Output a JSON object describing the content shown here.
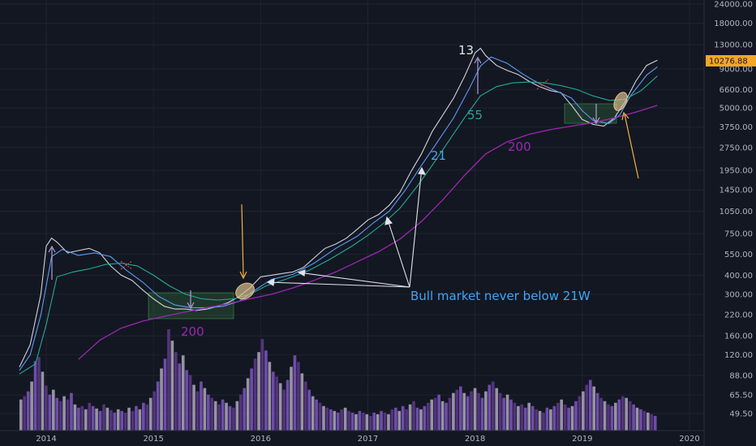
{
  "chart_data": {
    "type": "line",
    "y_scale": "log",
    "ylim": [
      45,
      27000
    ],
    "x_ticks": [
      "2014",
      "2015",
      "2016",
      "2017",
      "2018",
      "2019",
      "2020"
    ],
    "y_ticks": [
      24000,
      18000,
      13000,
      9000,
      6600,
      5000,
      3750,
      2750,
      1950,
      1450,
      1050,
      750,
      550,
      400,
      300,
      220,
      160,
      120,
      88,
      65.5,
      49.5
    ],
    "y_tick_labels": [
      "24000.00",
      "18000.00",
      "13000.00",
      "9000.00",
      "6600.00",
      "5000.00",
      "3750.00",
      "2750.00",
      "1950.00",
      "1450.00",
      "1050.00",
      "750.00",
      "550.00",
      "400.00",
      "300.00",
      "220.00",
      "160.00",
      "120.00",
      "88.00",
      "65.50",
      "49.50"
    ],
    "last_price": "10276.88",
    "series": [
      {
        "name": "13",
        "color": "#d1d4dc",
        "x": [
          2013.75,
          2013.85,
          2013.95,
          2014.0,
          2014.05,
          2014.1,
          2014.2,
          2014.3,
          2014.4,
          2014.5,
          2014.6,
          2014.7,
          2014.8,
          2014.9,
          2015.0,
          2015.1,
          2015.2,
          2015.3,
          2015.4,
          2015.5,
          2015.6,
          2015.7,
          2015.8,
          2015.9,
          2016.0,
          2016.1,
          2016.2,
          2016.3,
          2016.4,
          2016.5,
          2016.6,
          2016.7,
          2016.8,
          2016.9,
          2017.0,
          2017.1,
          2017.2,
          2017.3,
          2017.4,
          2017.5,
          2017.6,
          2017.7,
          2017.8,
          2017.9,
          2018.0,
          2018.05,
          2018.1,
          2018.2,
          2018.3,
          2018.4,
          2018.5,
          2018.6,
          2018.7,
          2018.8,
          2018.9,
          2019.0,
          2019.1,
          2019.2,
          2019.3,
          2019.4,
          2019.5,
          2019.6,
          2019.7
        ],
        "y": [
          100,
          140,
          300,
          620,
          700,
          660,
          560,
          580,
          600,
          560,
          460,
          400,
          370,
          320,
          280,
          250,
          240,
          240,
          235,
          240,
          250,
          265,
          290,
          330,
          390,
          400,
          410,
          420,
          450,
          520,
          600,
          640,
          700,
          800,
          920,
          1000,
          1150,
          1400,
          1900,
          2500,
          3500,
          4500,
          5800,
          8000,
          11500,
          12300,
          11000,
          9500,
          8800,
          8300,
          7500,
          6900,
          6500,
          6300,
          5200,
          4200,
          3900,
          3800,
          4300,
          5500,
          7500,
          9500,
          10276.88
        ]
      },
      {
        "name": "21",
        "color": "#5b9cf6",
        "x": [
          2013.75,
          2013.85,
          2013.95,
          2014.05,
          2014.15,
          2014.3,
          2014.45,
          2014.6,
          2014.75,
          2014.9,
          2015.05,
          2015.2,
          2015.35,
          2015.5,
          2015.65,
          2015.8,
          2015.95,
          2016.1,
          2016.3,
          2016.5,
          2016.7,
          2016.9,
          2017.05,
          2017.2,
          2017.35,
          2017.5,
          2017.65,
          2017.8,
          2017.95,
          2018.05,
          2018.15,
          2018.3,
          2018.45,
          2018.6,
          2018.75,
          2018.9,
          2019.0,
          2019.1,
          2019.25,
          2019.35,
          2019.45,
          2019.6,
          2019.7
        ],
        "y": [
          95,
          120,
          220,
          530,
          590,
          540,
          560,
          530,
          430,
          360,
          290,
          255,
          245,
          245,
          250,
          270,
          320,
          375,
          405,
          480,
          600,
          720,
          880,
          1050,
          1450,
          2100,
          3000,
          4300,
          6800,
          9400,
          10800,
          9800,
          8300,
          7200,
          6500,
          5800,
          4800,
          4150,
          3950,
          4500,
          6000,
          8200,
          9300
        ]
      },
      {
        "name": "55",
        "color": "#22ab94",
        "x": [
          2013.75,
          2013.9,
          2014.0,
          2014.1,
          2014.25,
          2014.4,
          2014.55,
          2014.7,
          2014.85,
          2015.0,
          2015.15,
          2015.3,
          2015.45,
          2015.6,
          2015.75,
          2015.9,
          2016.05,
          2016.25,
          2016.45,
          2016.65,
          2016.85,
          2017.0,
          2017.15,
          2017.3,
          2017.45,
          2017.6,
          2017.75,
          2017.9,
          2018.05,
          2018.2,
          2018.35,
          2018.5,
          2018.65,
          2018.8,
          2018.95,
          2019.1,
          2019.25,
          2019.4,
          2019.55,
          2019.7
        ],
        "y": [
          90,
          105,
          190,
          390,
          420,
          440,
          470,
          480,
          460,
          400,
          340,
          300,
          280,
          275,
          280,
          300,
          340,
          380,
          430,
          510,
          620,
          730,
          880,
          1100,
          1500,
          2100,
          3000,
          4300,
          6000,
          6900,
          7300,
          7400,
          7300,
          7000,
          6600,
          6000,
          5600,
          5700,
          6500,
          8100
        ]
      },
      {
        "name": "200",
        "color": "#9c27b0",
        "x": [
          2014.3,
          2014.5,
          2014.7,
          2014.9,
          2015.1,
          2015.3,
          2015.5,
          2015.7,
          2015.9,
          2016.1,
          2016.3,
          2016.5,
          2016.7,
          2016.9,
          2017.1,
          2017.3,
          2017.5,
          2017.7,
          2017.9,
          2018.1,
          2018.3,
          2018.5,
          2018.7,
          2018.9,
          2019.1,
          2019.3,
          2019.5,
          2019.7
        ],
        "y": [
          112,
          150,
          180,
          200,
          215,
          230,
          245,
          260,
          280,
          300,
          330,
          370,
          420,
          490,
          570,
          690,
          900,
          1250,
          1800,
          2500,
          3000,
          3350,
          3600,
          3800,
          4000,
          4300,
          4700,
          5200
        ]
      }
    ],
    "volume": {
      "color": "#9c27b0",
      "x_start": 2013.75,
      "x_end": 2019.7,
      "values": [
        38,
        42,
        48,
        60,
        85,
        90,
        72,
        55,
        44,
        50,
        40,
        36,
        42,
        38,
        46,
        32,
        28,
        30,
        26,
        34,
        30,
        27,
        24,
        32,
        28,
        25,
        22,
        26,
        24,
        22,
        28,
        24,
        30,
        26,
        34,
        32,
        40,
        48,
        60,
        76,
        88,
        124,
        110,
        96,
        82,
        92,
        74,
        68,
        56,
        48,
        60,
        52,
        44,
        40,
        36,
        32,
        38,
        34,
        30,
        28,
        36,
        44,
        52,
        64,
        76,
        88,
        96,
        112,
        98,
        84,
        72,
        66,
        58,
        50,
        62,
        78,
        92,
        84,
        70,
        60,
        50,
        42,
        38,
        34,
        30,
        28,
        26,
        24,
        22,
        26,
        28,
        24,
        22,
        20,
        24,
        22,
        20,
        18,
        22,
        20,
        24,
        22,
        20,
        26,
        28,
        24,
        30,
        26,
        32,
        36,
        28,
        26,
        30,
        34,
        38,
        40,
        44,
        36,
        34,
        40,
        46,
        50,
        54,
        46,
        42,
        48,
        52,
        46,
        40,
        48,
        56,
        60,
        52,
        46,
        40,
        44,
        38,
        34,
        30,
        32,
        28,
        34,
        30,
        26,
        24,
        22,
        28,
        26,
        30,
        34,
        38,
        32,
        28,
        30,
        36,
        42,
        48,
        56,
        62,
        54,
        46,
        40,
        36,
        32,
        30,
        34,
        38,
        42,
        40,
        36,
        32,
        28,
        26,
        24,
        22,
        20,
        18
      ]
    },
    "annotations": {
      "ma_labels": [
        "13",
        "21",
        "55",
        "200"
      ],
      "lower_200": "200",
      "bull_text": "Bull market never below 21W"
    }
  }
}
